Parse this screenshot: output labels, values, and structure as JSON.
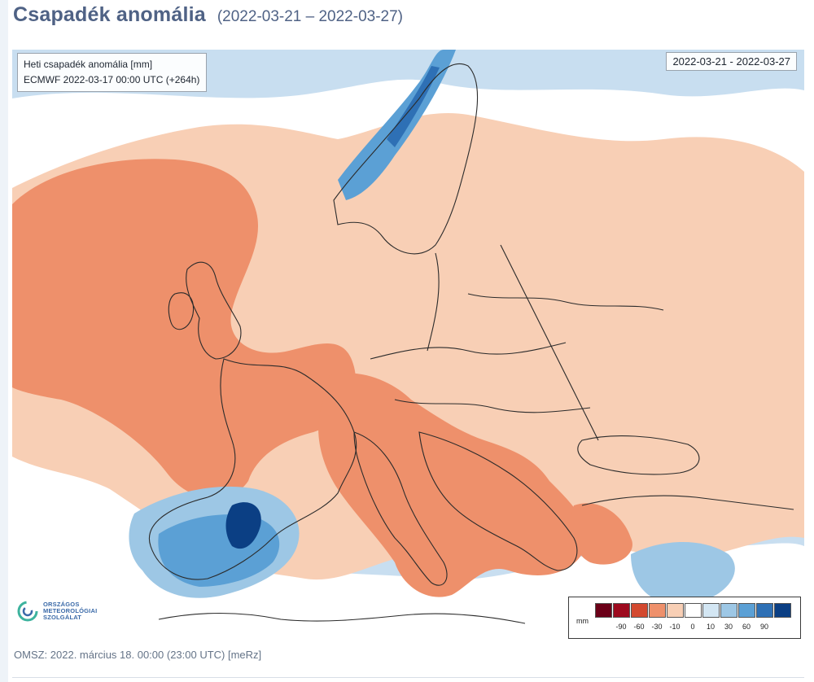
{
  "header": {
    "title": "Csapadék anomália",
    "period": "(2022-03-21 – 2022-03-27)"
  },
  "map": {
    "info_line1": "Heti csapadék anomália [mm]",
    "info_line2": "ECMWF 2022-03-17 00:00 UTC (+264h)",
    "date_range": "2022-03-21 - 2022-03-27",
    "logo_text": [
      "ORSZÁGOS",
      "METEOROLÓGIAI",
      "SZOLGÁLAT"
    ],
    "legend": {
      "unit": "mm",
      "colors": [
        "#6b0018",
        "#9d0a1e",
        "#d3492f",
        "#ee906b",
        "#f8cfb5",
        "#ffffff",
        "#d3e6f3",
        "#9dc7e5",
        "#5ba0d5",
        "#2e70b5",
        "#0b3f84"
      ],
      "ticks": [
        "-90",
        "-60",
        "-30",
        "-10",
        "0",
        "10",
        "30",
        "60",
        "90"
      ]
    }
  },
  "footer": {
    "text": "OMSZ: 2022. március 18. 00:00 (23:00  UTC)  [meRz]"
  }
}
